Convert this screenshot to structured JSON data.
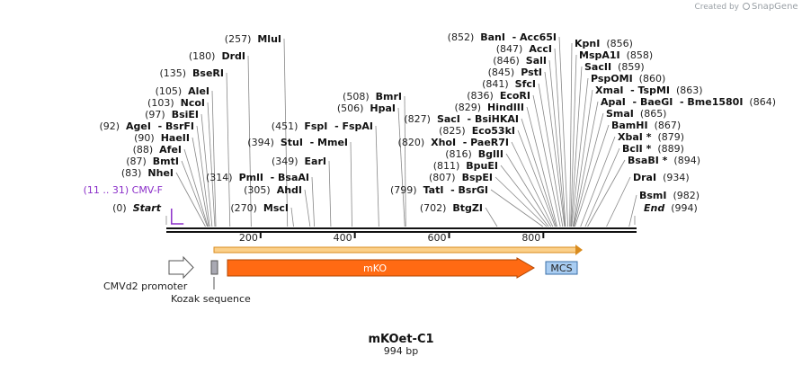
{
  "plasmid": {
    "name": "mKOet-C1",
    "size_label": "994 bp",
    "length": 994
  },
  "credit": {
    "prefix": "Created by",
    "brand": "SnapGene"
  },
  "axis_ticks": [
    {
      "pos": 200,
      "label": "200"
    },
    {
      "pos": 400,
      "label": "400"
    },
    {
      "pos": 600,
      "label": "600"
    },
    {
      "pos": 800,
      "label": "800"
    }
  ],
  "primer": {
    "label": "(11 .. 31)  CMV-F",
    "start": 11,
    "end": 31,
    "color": "#8b2fc9"
  },
  "sites_left": [
    {
      "pos": "(0)",
      "name": "Start",
      "italic": true,
      "at": 0
    },
    {
      "pos": "(83)",
      "name": "NheI",
      "at": 83
    },
    {
      "pos": "(87)",
      "name": "BmtI",
      "at": 87
    },
    {
      "pos": "(88)",
      "name": "AfeI",
      "at": 88
    },
    {
      "pos": "(90)",
      "name": "HaeII",
      "at": 90
    },
    {
      "pos": "(92)",
      "name": "AgeI  - BsrFI",
      "at": 92
    },
    {
      "pos": "(97)",
      "name": "BsiEI",
      "at": 97
    },
    {
      "pos": "(103)",
      "name": "NcoI",
      "at": 103
    },
    {
      "pos": "(105)",
      "name": "AleI",
      "at": 105
    },
    {
      "pos": "(135)",
      "name": "BseRI",
      "at": 135
    },
    {
      "pos": "(180)",
      "name": "DrdI",
      "at": 180
    },
    {
      "pos": "(257)",
      "name": "MluI",
      "at": 257
    }
  ],
  "sites_mid": [
    {
      "pos": "(270)",
      "name": "MscI",
      "at": 270
    },
    {
      "pos": "(305)",
      "name": "AhdI",
      "at": 305
    },
    {
      "pos": "(314)",
      "name": "PmlI  - BsaAI",
      "at": 314
    },
    {
      "pos": "(349)",
      "name": "EarI",
      "at": 349
    },
    {
      "pos": "(394)",
      "name": "StuI  - MmeI",
      "at": 394
    },
    {
      "pos": "(451)",
      "name": "FspI  - FspAI",
      "at": 451
    },
    {
      "pos": "(506)",
      "name": "HpaI",
      "at": 506
    },
    {
      "pos": "(508)",
      "name": "BmrI",
      "at": 508
    }
  ],
  "sites_right": [
    {
      "pos": "(702)",
      "name": "BtgZI",
      "at": 702
    },
    {
      "pos": "(799)",
      "name": "TatI  - BsrGI",
      "at": 799
    },
    {
      "pos": "(807)",
      "name": "BspEI",
      "at": 807
    },
    {
      "pos": "(811)",
      "name": "BpuEI",
      "at": 811
    },
    {
      "pos": "(816)",
      "name": "BglII",
      "at": 816
    },
    {
      "pos": "(820)",
      "name": "XhoI  - PaeR7I",
      "at": 820
    },
    {
      "pos": "(825)",
      "name": "Eco53kI",
      "at": 825
    },
    {
      "pos": "(827)",
      "name": "SacI  - BsiHKAI",
      "at": 827
    },
    {
      "pos": "(829)",
      "name": "HindIII",
      "at": 829
    },
    {
      "pos": "(836)",
      "name": "EcoRI",
      "at": 836
    },
    {
      "pos": "(841)",
      "name": "SfcI",
      "at": 841
    },
    {
      "pos": "(845)",
      "name": "PstI",
      "at": 845
    },
    {
      "pos": "(846)",
      "name": "SalI",
      "at": 846
    },
    {
      "pos": "(847)",
      "name": "AccI",
      "at": 847
    },
    {
      "pos": "(852)",
      "name": "BanI  - Acc65I",
      "at": 852
    }
  ],
  "sites_far": [
    {
      "name": "KpnI",
      "pos": "(856)",
      "at": 856
    },
    {
      "name": "MspA1I",
      "pos": "(858)",
      "at": 858
    },
    {
      "name": "SacII",
      "pos": "(859)",
      "at": 859
    },
    {
      "name": "PspOMI",
      "pos": "(860)",
      "at": 860
    },
    {
      "name": "XmaI  - TspMI",
      "pos": "(863)",
      "at": 863
    },
    {
      "name": "ApaI  - BaeGI  - Bme1580I",
      "pos": "(864)",
      "at": 864
    },
    {
      "name": "SmaI",
      "pos": "(865)",
      "at": 865
    },
    {
      "name": "BamHI",
      "pos": "(867)",
      "at": 867
    },
    {
      "name": "XbaI *",
      "pos": "(879)",
      "at": 879
    },
    {
      "name": "BclI *",
      "pos": "(889)",
      "at": 889
    },
    {
      "name": "BsaBI *",
      "pos": "(894)",
      "at": 894
    },
    {
      "name": "DraI",
      "pos": "(934)",
      "at": 934
    },
    {
      "name": "BsmI",
      "pos": "(982)",
      "at": 982
    },
    {
      "name": "End",
      "pos": "(994)",
      "italic": true,
      "at": 994
    }
  ],
  "features": [
    {
      "id": "cmvd2",
      "label": "CMVd2 promoter",
      "type": "promoter",
      "color": "#ffffff"
    },
    {
      "id": "kozak",
      "label": "Kozak sequence",
      "type": "box",
      "color": "#a9a9b3"
    },
    {
      "id": "mko",
      "label": "mKO",
      "type": "cds",
      "color": "#ff6a13"
    },
    {
      "id": "mcs",
      "label": "MCS",
      "type": "box",
      "color": "#a9cdf2"
    }
  ],
  "orf_color": "#f5a623"
}
